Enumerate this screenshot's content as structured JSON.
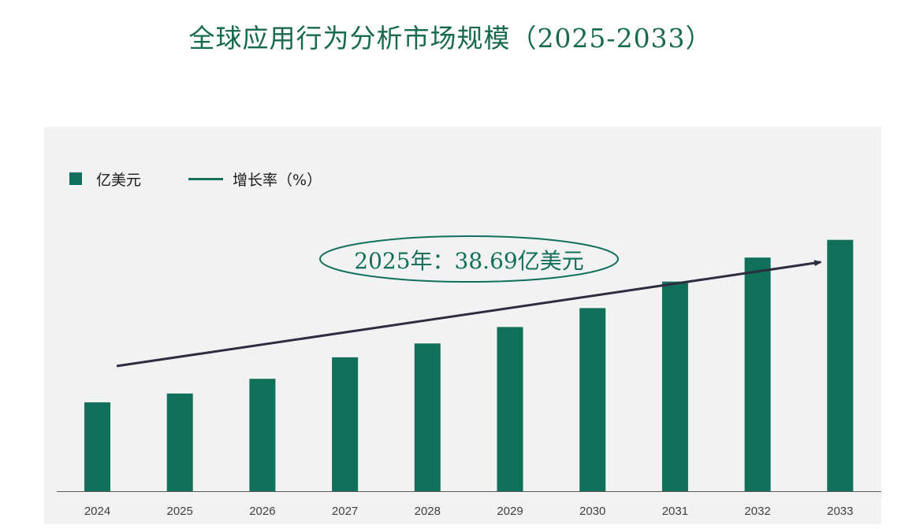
{
  "header": {
    "title": "全球应用行为分析市场规模（2025-2033）"
  },
  "legend": {
    "bar_label": "亿美元",
    "line_label": "增长率（%）"
  },
  "callout": {
    "text": "2025年：38.69亿美元"
  },
  "colors": {
    "accent": "#117059",
    "title": "#17694f",
    "arrow": "#2d2d40",
    "panel": "#f2f2f2"
  },
  "chart_data": {
    "type": "bar",
    "title": "全球应用行为分析市场规模（2025-2033）",
    "xlabel": "",
    "ylabel": "",
    "categories": [
      "2024",
      "2025",
      "2026",
      "2027",
      "2028",
      "2029",
      "2030",
      "2031",
      "2032",
      "2033"
    ],
    "series": [
      {
        "name": "亿美元",
        "values": [
          35.2,
          38.69,
          44.5,
          53.0,
          58.5,
          65.0,
          72.5,
          83.0,
          92.5,
          99.5
        ]
      }
    ],
    "ylim": [
      0,
      115
    ],
    "y_axis_visible": false,
    "grid": false,
    "legend_position": "top-left",
    "trend_line": {
      "series_name": "增长率（%）",
      "shape": "rising arrow"
    }
  }
}
